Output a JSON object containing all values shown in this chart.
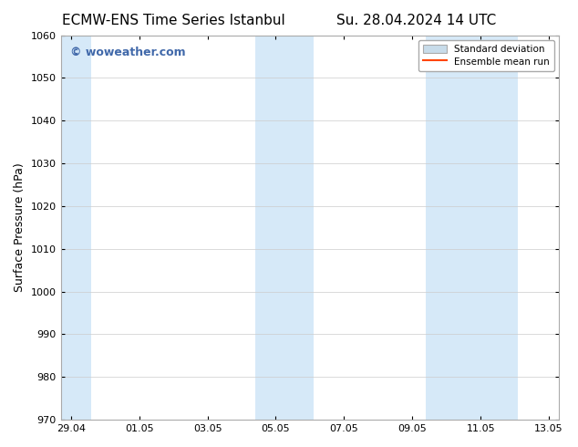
{
  "title_left": "ECMW-ENS Time Series Istanbul",
  "title_right": "Su. 28.04.2024 14 UTC",
  "ylabel": "Surface Pressure (hPa)",
  "ylim": [
    970,
    1060
  ],
  "yticks": [
    970,
    980,
    990,
    1000,
    1010,
    1020,
    1030,
    1040,
    1050,
    1060
  ],
  "xlim_start": "2024-04-29",
  "xlim_end": "2024-05-14",
  "xtick_labels": [
    "29.04",
    "01.05",
    "03.05",
    "05.05",
    "07.05",
    "09.05",
    "11.05",
    "13.05"
  ],
  "xtick_positions": [
    0,
    2,
    4,
    6,
    8,
    10,
    12,
    14
  ],
  "background_color": "#ffffff",
  "plot_bg_color": "#ffffff",
  "shaded_regions": [
    {
      "x_start": 0,
      "x_end": 0.5,
      "color": "#ddeeff"
    },
    {
      "x_start": 5.5,
      "x_end": 7.0,
      "color": "#ddeeff"
    },
    {
      "x_start": 10.5,
      "x_end": 13.0,
      "color": "#ddeeff"
    }
  ],
  "watermark_text": "© woweather.com",
  "watermark_color": "#4169aa",
  "legend_std_dev_color": "#ccddee",
  "legend_mean_color": "#ff4400",
  "title_fontsize": 11,
  "axis_fontsize": 9,
  "tick_fontsize": 8
}
